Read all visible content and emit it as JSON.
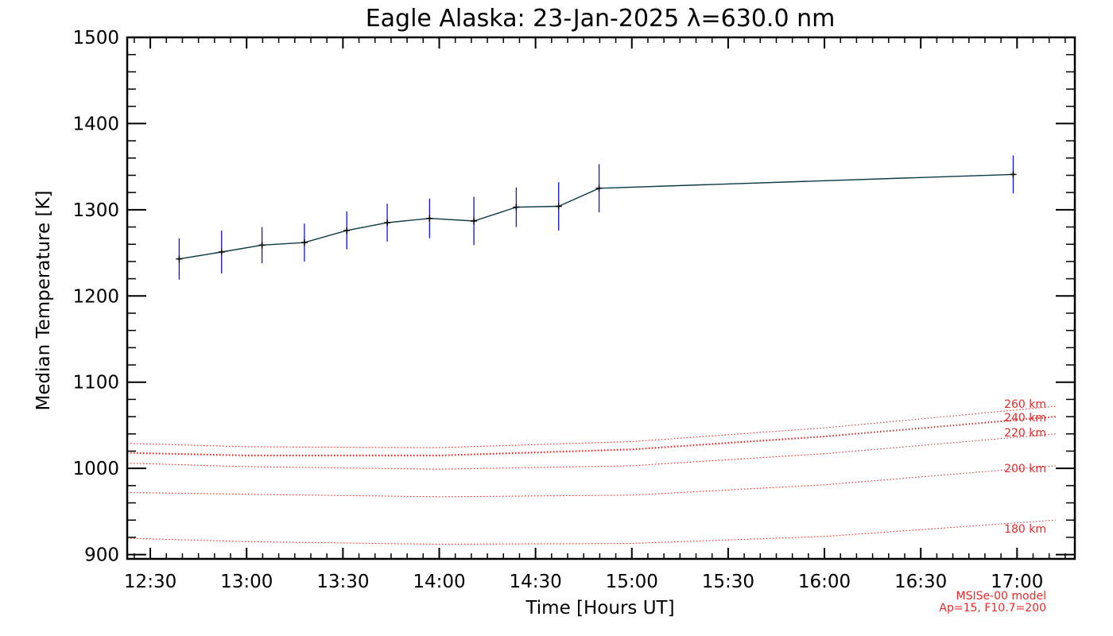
{
  "chart_data": {
    "type": "line",
    "title": "Eagle Alaska: 23-Jan-2025 λ=630.0 nm",
    "xlabel": "Time [Hours UT]",
    "ylabel": "Median Temperature [K]",
    "xlim": [
      12.38,
      17.3
    ],
    "ylim": [
      895,
      1500
    ],
    "x_ticks": [
      {
        "value": 12.5,
        "label": "12:30"
      },
      {
        "value": 13.0,
        "label": "13:00"
      },
      {
        "value": 13.5,
        "label": "13:30"
      },
      {
        "value": 14.0,
        "label": "14:00"
      },
      {
        "value": 14.5,
        "label": "14:30"
      },
      {
        "value": 15.0,
        "label": "15:00"
      },
      {
        "value": 15.5,
        "label": "15:30"
      },
      {
        "value": 16.0,
        "label": "16:00"
      },
      {
        "value": 16.5,
        "label": "16:30"
      },
      {
        "value": 17.0,
        "label": "17:00"
      }
    ],
    "y_ticks": [
      {
        "value": 900,
        "label": "900"
      },
      {
        "value": 1000,
        "label": "1000"
      },
      {
        "value": 1100,
        "label": "1100"
      },
      {
        "value": 1200,
        "label": "1200"
      },
      {
        "value": 1300,
        "label": "1300"
      },
      {
        "value": 1400,
        "label": "1400"
      },
      {
        "value": 1500,
        "label": "1500"
      }
    ],
    "series": [
      {
        "name": "Median Temperature",
        "color": "#0a3a44",
        "error_color": "#1010ee",
        "points": [
          {
            "x": 12.65,
            "y": 1243,
            "err": 24
          },
          {
            "x": 12.87,
            "y": 1251,
            "err": 25
          },
          {
            "x": 13.08,
            "y": 1259,
            "err": 21
          },
          {
            "x": 13.3,
            "y": 1262,
            "err": 22
          },
          {
            "x": 13.52,
            "y": 1276,
            "err": 22
          },
          {
            "x": 13.73,
            "y": 1285,
            "err": 22
          },
          {
            "x": 13.95,
            "y": 1290,
            "err": 23
          },
          {
            "x": 14.18,
            "y": 1287,
            "err": 28
          },
          {
            "x": 14.4,
            "y": 1303,
            "err": 23
          },
          {
            "x": 14.62,
            "y": 1304,
            "err": 28
          },
          {
            "x": 14.83,
            "y": 1325,
            "err": 28
          },
          {
            "x": 16.98,
            "y": 1341,
            "err": 22
          }
        ]
      }
    ],
    "model_curves": [
      {
        "label": "180 km",
        "color": "#e8292a",
        "points": [
          [
            12.38,
            919
          ],
          [
            13.0,
            915
          ],
          [
            14.0,
            912
          ],
          [
            15.0,
            913
          ],
          [
            16.0,
            921
          ],
          [
            17.2,
            940
          ]
        ]
      },
      {
        "label": "200 km",
        "color": "#e8292a",
        "points": [
          [
            12.38,
            972
          ],
          [
            13.0,
            970
          ],
          [
            14.0,
            967
          ],
          [
            15.0,
            969
          ],
          [
            16.0,
            981
          ],
          [
            17.2,
            1003
          ]
        ]
      },
      {
        "label": "220 km",
        "color": "#e8292a",
        "points": [
          [
            12.38,
            1006
          ],
          [
            13.0,
            1002
          ],
          [
            14.0,
            999
          ],
          [
            15.0,
            1003
          ],
          [
            16.0,
            1017
          ],
          [
            17.2,
            1040
          ]
        ]
      },
      {
        "label": "240 km",
        "color": "#e8292a",
        "points": [
          [
            12.38,
            1018
          ],
          [
            13.0,
            1015
          ],
          [
            14.0,
            1015
          ],
          [
            15.0,
            1022
          ],
          [
            16.0,
            1037
          ],
          [
            17.2,
            1060
          ]
        ]
      },
      {
        "label": "260 km",
        "color": "#e8292a",
        "points": [
          [
            12.38,
            1029
          ],
          [
            13.0,
            1025
          ],
          [
            14.0,
            1024
          ],
          [
            15.0,
            1031
          ],
          [
            16.0,
            1047
          ],
          [
            17.2,
            1072
          ]
        ]
      }
    ],
    "model_note": [
      "MSISe-00 model",
      "Ap=15, F10.7=200"
    ]
  }
}
